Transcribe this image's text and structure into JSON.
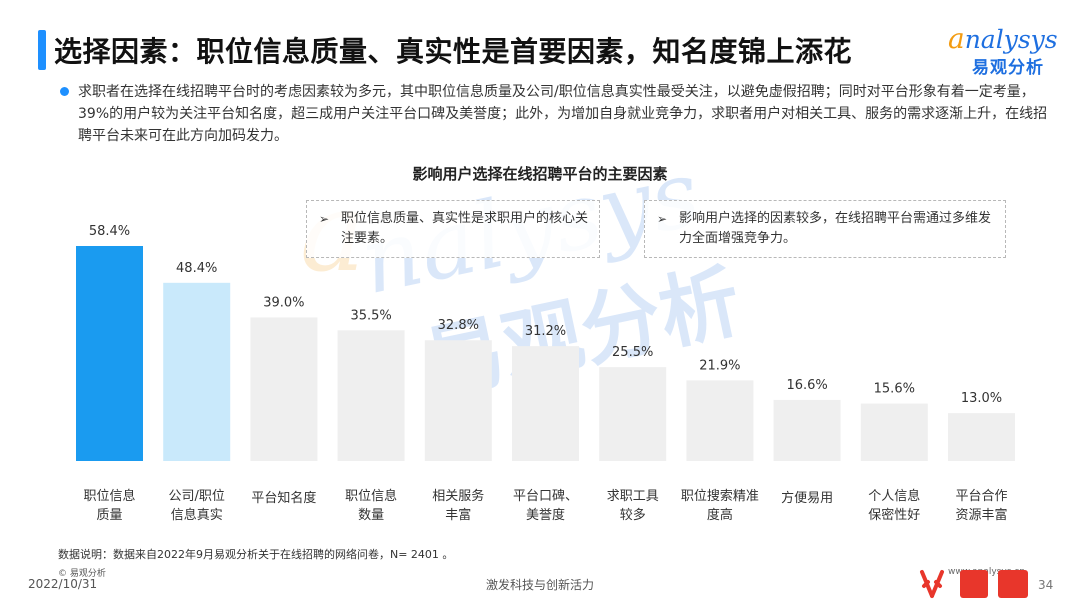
{
  "header": {
    "title": "选择因素：职位信息质量、真实性是首要因素，知名度锦上添花",
    "logo_en": "nalysys",
    "logo_en_first": "a",
    "logo_cn": "易观分析"
  },
  "intro": {
    "text": "求职者在选择在线招聘平台时的考虑因素较为多元，其中职位信息质量及公司/职位信息真实性最受关注，以避免虚假招聘；同时对平台形象有着一定考量，39%的用户较为关注平台知名度，超三成用户关注平台口碑及美誉度；此外，为增加自身就业竞争力，求职者用户对相关工具、服务的需求逐渐上升，在线招聘平台未来可在此方向加码发力。"
  },
  "callouts": [
    {
      "marker": "➢",
      "text": "职位信息质量、真实性是求职用户的核心关注要素。"
    },
    {
      "marker": "➢",
      "text": "影响用户选择的因素较多，在线招聘平台需通过多维发力全面增强竞争力。"
    }
  ],
  "watermark": {
    "en": "nalysys",
    "cn": "易观分析"
  },
  "chart_data": {
    "type": "bar",
    "title": "影响用户选择在线招聘平台的主要因素",
    "categories": [
      [
        "职位信息",
        "质量"
      ],
      [
        "公司/职位",
        "信息真实"
      ],
      [
        "平台知名度"
      ],
      [
        "职位信息",
        "数量"
      ],
      [
        "相关服务",
        "丰富"
      ],
      [
        "平台口碑、",
        "美誉度"
      ],
      [
        "求职工具",
        "较多"
      ],
      [
        "职位搜索精准",
        "度高"
      ],
      [
        "方便易用"
      ],
      [
        "个人信息",
        "保密性好"
      ],
      [
        "平台合作",
        "资源丰富"
      ]
    ],
    "values": [
      58.4,
      48.4,
      39.0,
      35.5,
      32.8,
      31.2,
      25.5,
      21.9,
      16.6,
      15.6,
      13.0
    ],
    "value_labels": [
      "58.4%",
      "48.4%",
      "39.0%",
      "35.5%",
      "32.8%",
      "31.2%",
      "25.5%",
      "21.9%",
      "16.6%",
      "15.6%",
      "13.0%"
    ],
    "ylim": [
      0,
      58.4
    ],
    "colors": [
      "#1a9bf0",
      "#c9e9fb",
      "#efefef",
      "#efefef",
      "#efefef",
      "#efefef",
      "#efefef",
      "#efefef",
      "#efefef",
      "#efefef",
      "#efefef"
    ],
    "grid": false,
    "xlabel": "",
    "ylabel": ""
  },
  "footer": {
    "note": "数据说明：数据来自2022年9月易观分析关于在线招聘的网络问卷，N= 2401 。",
    "copyright": "© 易观分析",
    "date": "2022/10/31",
    "center": "激发科技与创新活力",
    "url": "www.analysys.cn",
    "page": "34"
  }
}
